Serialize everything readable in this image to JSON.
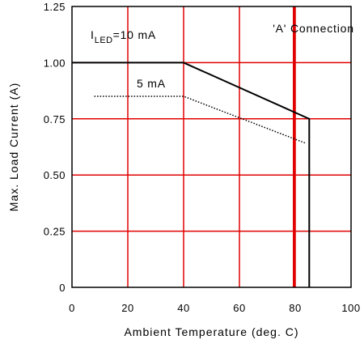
{
  "chart_data": {
    "type": "line",
    "title": "",
    "xlabel": "Ambient Temperature (deg. C)",
    "ylabel": "Max. Load Current (A)",
    "xlim": [
      0,
      100
    ],
    "ylim": [
      0,
      1.25
    ],
    "xticks": [
      "0",
      "20",
      "40",
      "60",
      "80",
      "100"
    ],
    "yticks": [
      "0",
      "0.25",
      "0.50",
      "0.75",
      "1.00",
      "1.25"
    ],
    "grid": true,
    "grid_color": "#e00000",
    "series": [
      {
        "name": "I LED=10 mA",
        "name_main": "I",
        "name_sub": "LED",
        "name_rest": "=10 mA",
        "style": "solid",
        "color": "#000000",
        "x": [
          0,
          40,
          85,
          85
        ],
        "y": [
          1.0,
          1.0,
          0.75,
          0
        ]
      },
      {
        "name": "5 mA",
        "style": "dotted",
        "color": "#000000",
        "x": [
          8,
          40,
          84
        ],
        "y": [
          0.85,
          0.85,
          0.64
        ]
      }
    ],
    "annotations": [
      {
        "text": "'A' Connection",
        "x": 90,
        "y": 1.15
      }
    ],
    "reference_line": {
      "x": 80,
      "color": "#e00000"
    }
  }
}
